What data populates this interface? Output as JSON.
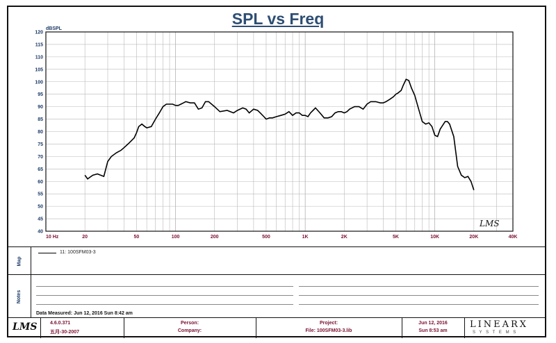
{
  "chart_data": {
    "type": "line",
    "title": "SPL vs Freq",
    "ylabel": "dBSPL",
    "xscale": "log",
    "xlim": [
      10,
      40000
    ],
    "ylim": [
      40,
      120
    ],
    "y_ticks": [
      40,
      45,
      50,
      55,
      60,
      65,
      70,
      75,
      80,
      85,
      90,
      95,
      100,
      105,
      110,
      115,
      120
    ],
    "x_ticks": [
      {
        "v": 10,
        "label": "10  Hz"
      },
      {
        "v": 20,
        "label": "20"
      },
      {
        "v": 50,
        "label": "50"
      },
      {
        "v": 100,
        "label": "100"
      },
      {
        "v": 200,
        "label": "200"
      },
      {
        "v": 500,
        "label": "500"
      },
      {
        "v": 1000,
        "label": "1K"
      },
      {
        "v": 2000,
        "label": "2K"
      },
      {
        "v": 5000,
        "label": "5K"
      },
      {
        "v": 10000,
        "label": "10K"
      },
      {
        "v": 20000,
        "label": "20K"
      },
      {
        "v": 40000,
        "label": "40K"
      }
    ],
    "grid": true,
    "series": [
      {
        "name": "11: 100SFM03-3",
        "color": "#000000",
        "x": [
          20,
          21,
          23,
          25,
          28,
          30,
          32,
          35,
          38,
          40,
          43,
          45,
          48,
          50,
          52,
          55,
          58,
          60,
          65,
          70,
          75,
          80,
          85,
          90,
          95,
          100,
          105,
          110,
          115,
          120,
          130,
          140,
          150,
          160,
          170,
          180,
          200,
          220,
          250,
          280,
          300,
          330,
          350,
          370,
          400,
          430,
          450,
          480,
          500,
          530,
          560,
          600,
          650,
          700,
          750,
          800,
          850,
          900,
          950,
          1000,
          1050,
          1100,
          1150,
          1200,
          1300,
          1400,
          1500,
          1600,
          1700,
          1800,
          1900,
          2000,
          2100,
          2200,
          2400,
          2600,
          2800,
          3000,
          3200,
          3500,
          3800,
          4000,
          4200,
          4500,
          4800,
          5000,
          5200,
          5500,
          5700,
          6000,
          6300,
          6600,
          7000,
          7500,
          8000,
          8500,
          9000,
          9500,
          10000,
          10500,
          11000,
          12000,
          12500,
          13000,
          14000,
          15000,
          16000,
          17000,
          18000,
          19000,
          20000
        ],
        "y": [
          62.5,
          61,
          62.5,
          63,
          62,
          68,
          70,
          71.5,
          72.5,
          73.5,
          75,
          76,
          77.5,
          79.5,
          82,
          83,
          82,
          81.5,
          82,
          85,
          87.5,
          90,
          91,
          91,
          91,
          90.5,
          90.5,
          91,
          91.5,
          92,
          91.5,
          91.5,
          89,
          89.5,
          92,
          92,
          90,
          88,
          88.5,
          87.5,
          88.5,
          89.5,
          89,
          87.5,
          89,
          88.5,
          87.5,
          86,
          85,
          85.5,
          85.5,
          86,
          86.5,
          87,
          88,
          86.5,
          87.5,
          87.5,
          86.5,
          86.5,
          86,
          87.5,
          88.5,
          89.5,
          87.5,
          85.5,
          85.5,
          86,
          87.5,
          88,
          88,
          87.5,
          88,
          89,
          90,
          90,
          89,
          91,
          92,
          92,
          91.5,
          91.5,
          92,
          93,
          94,
          95,
          95.5,
          96.5,
          98.5,
          101,
          100.5,
          97.5,
          94.5,
          89,
          84,
          83,
          83.5,
          82,
          78.5,
          78,
          81,
          84,
          84,
          83,
          78,
          66,
          62.5,
          61.5,
          62,
          60,
          56.5
        ]
      }
    ]
  },
  "legend": {
    "entry": "11: 100SFM03-3"
  },
  "sections": {
    "map_label": "Map",
    "notes_label": "Notes"
  },
  "notes": {
    "data_measured": "Data Measured: Jun 12, 2016  Sun  8:42 am"
  },
  "footer": {
    "logo": "LMS",
    "version": "4.6.0.371",
    "build": "五月-30-2007",
    "person": "Person:",
    "company": "Company:",
    "project": "Project:",
    "file": "File: 100SFM03-3.lib",
    "date": "Jun 12, 2016",
    "time": "Sun  8:53 am",
    "brand": "LINEARX",
    "brand_sub": "S Y S T E M S"
  },
  "watermark": "LMS",
  "colors": {
    "title": "#2d4e73",
    "ytick": "#1c3a66",
    "xtick": "#7a1030",
    "grid": "#b8b8b8"
  }
}
